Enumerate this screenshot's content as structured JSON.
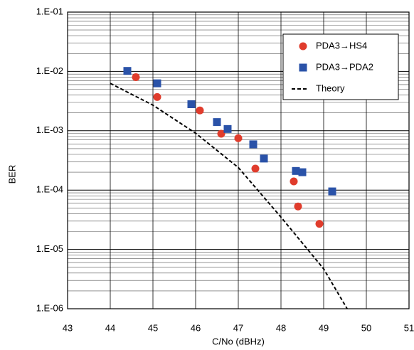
{
  "chart_data": {
    "type": "scatter",
    "xlabel": "C/No (dBHz)",
    "ylabel": "BER",
    "xlim": [
      43,
      51
    ],
    "xticks": [
      43,
      44,
      45,
      46,
      47,
      48,
      49,
      50,
      51
    ],
    "ylim": [
      1e-06,
      0.1
    ],
    "ylog": true,
    "grid": true,
    "legend": "upper right",
    "yticks": [
      {
        "value": 0.1,
        "label": "1.E-01"
      },
      {
        "value": 0.01,
        "label": "1.E-02"
      },
      {
        "value": 0.001,
        "label": "1.E-03"
      },
      {
        "value": 0.0001,
        "label": "1.E-04"
      },
      {
        "value": 1e-05,
        "label": "1.E-05"
      },
      {
        "value": 1e-06,
        "label": "1.E-06"
      }
    ],
    "series": [
      {
        "name": "PDA3→HS4",
        "color": "#e03c2c",
        "marker": "circle",
        "x": [
          44.6,
          45.1,
          46.1,
          46.6,
          47.0,
          47.4,
          48.3,
          48.4,
          48.9
        ],
        "values": [
          0.008,
          0.0037,
          0.0022,
          0.00089,
          0.00075,
          0.00023,
          0.00014,
          5.3e-05,
          2.7e-05
        ]
      },
      {
        "name": "PDA3→PDA2",
        "color": "#2a52a8",
        "marker": "square",
        "x": [
          44.4,
          45.1,
          45.9,
          46.5,
          46.75,
          47.35,
          47.6,
          48.35,
          48.5,
          49.2
        ],
        "values": [
          0.0102,
          0.0063,
          0.0028,
          0.0014,
          0.00107,
          0.00059,
          0.00034,
          0.00021,
          0.0002,
          9.5e-05
        ]
      },
      {
        "name": "Theory",
        "color": "#000000",
        "marker": "dashed-line",
        "x": [
          44,
          45,
          46,
          47,
          48,
          49,
          49.55
        ],
        "values": [
          0.0063,
          0.0027,
          0.00091,
          0.00024,
          3.5e-05,
          4.7e-06,
          1e-06
        ]
      }
    ]
  }
}
